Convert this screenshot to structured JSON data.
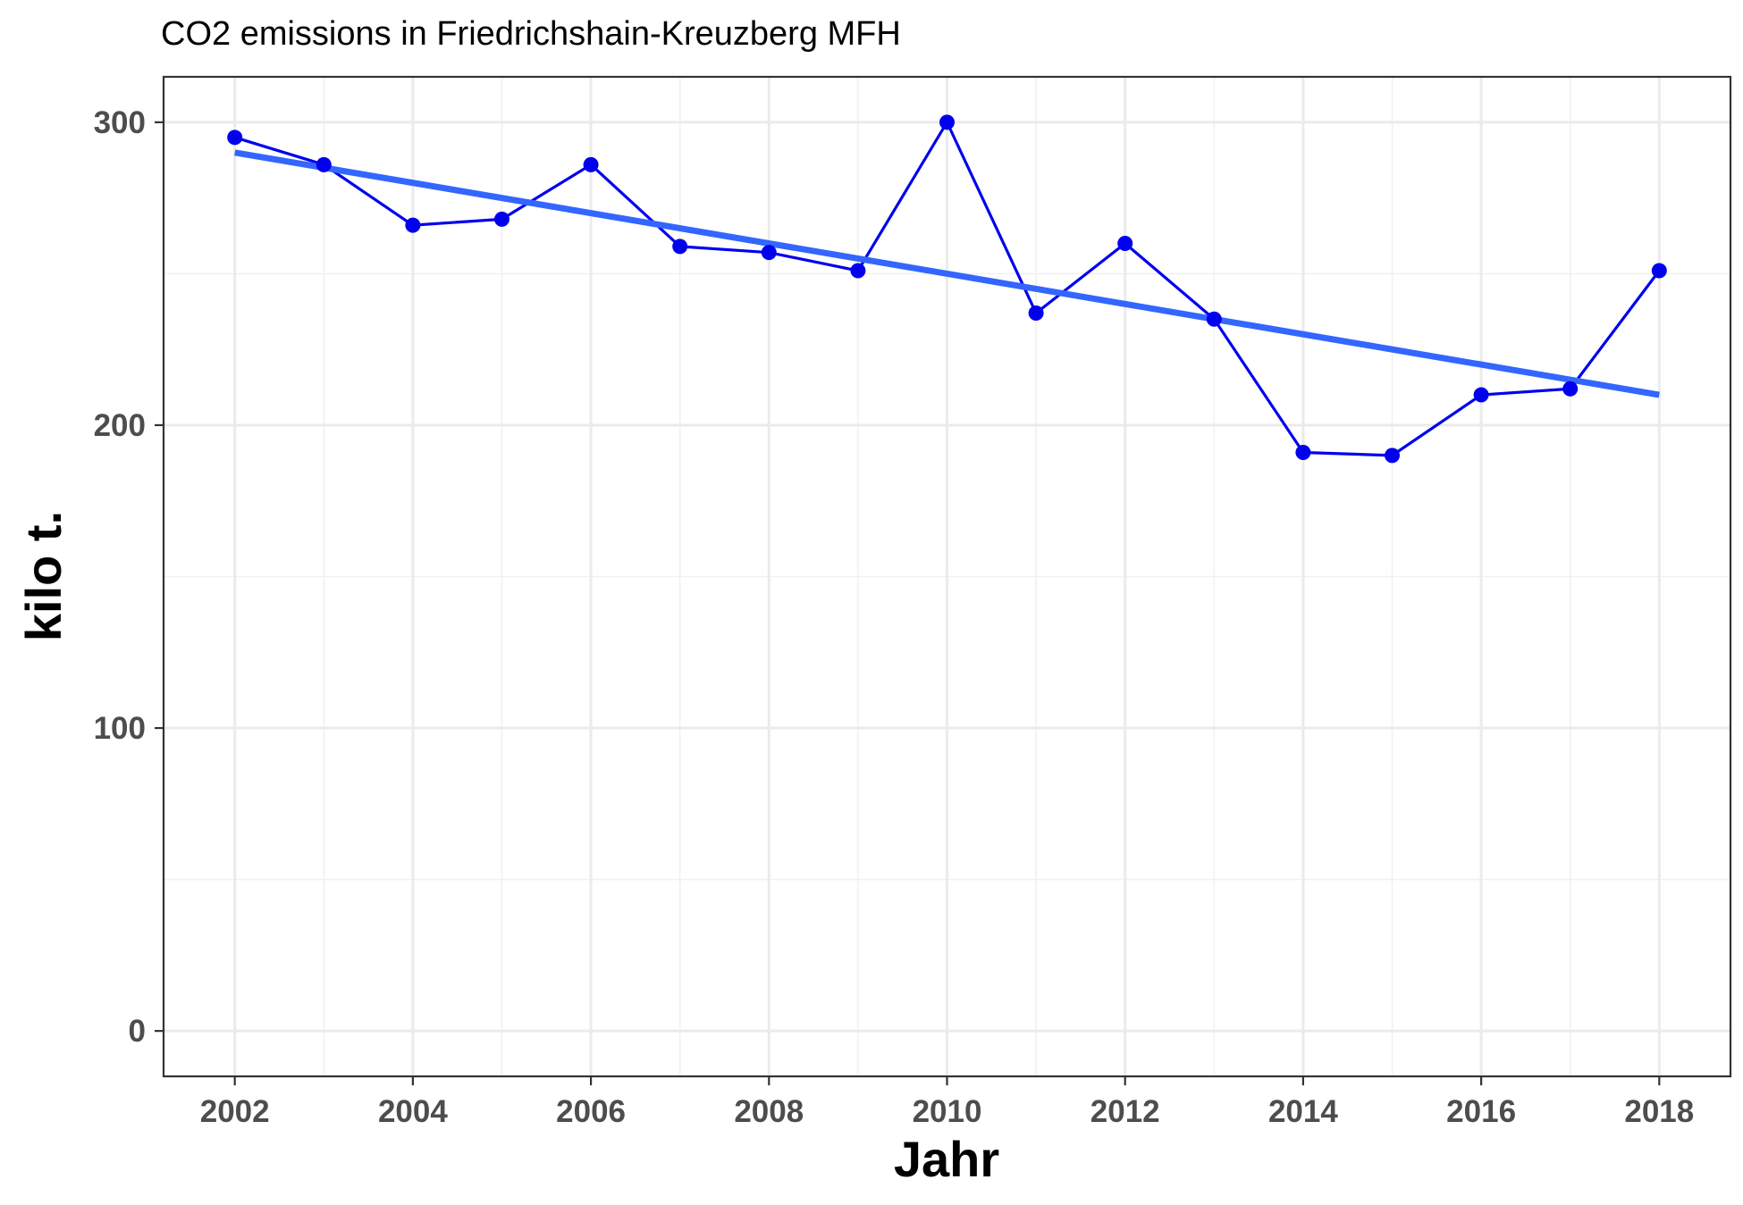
{
  "chart_data": {
    "type": "line",
    "title": "CO2 emissions in Friedrichshain-Kreuzberg MFH",
    "xlabel": "Jahr",
    "ylabel": "kilo t.",
    "xlim": [
      2001.2,
      2018.8
    ],
    "ylim": [
      -15,
      315
    ],
    "x_ticks": [
      2002,
      2004,
      2006,
      2008,
      2010,
      2012,
      2014,
      2016,
      2018
    ],
    "y_ticks": [
      0,
      100,
      200,
      300
    ],
    "grid": true,
    "legend": "none",
    "series": [
      {
        "kind": "line+points",
        "color": "#0000ee",
        "x": [
          2002,
          2003,
          2004,
          2005,
          2006,
          2007,
          2008,
          2009,
          2010,
          2011,
          2012,
          2013,
          2014,
          2015,
          2016,
          2017,
          2018
        ],
        "y": [
          295,
          286,
          266,
          268,
          286,
          259,
          257,
          251,
          300,
          237,
          260,
          235,
          191,
          190,
          210,
          212,
          251
        ]
      },
      {
        "kind": "trend",
        "color": "#3366ff",
        "x": [
          2002,
          2018
        ],
        "y": [
          290,
          210
        ]
      }
    ]
  }
}
